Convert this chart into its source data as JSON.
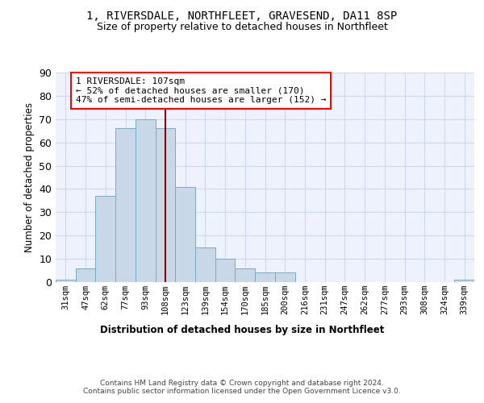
{
  "title": "1, RIVERSDALE, NORTHFLEET, GRAVESEND, DA11 8SP",
  "subtitle": "Size of property relative to detached houses in Northfleet",
  "xlabel": "Distribution of detached houses by size in Northfleet",
  "ylabel": "Number of detached properties",
  "bar_labels": [
    "31sqm",
    "47sqm",
    "62sqm",
    "77sqm",
    "93sqm",
    "108sqm",
    "123sqm",
    "139sqm",
    "154sqm",
    "170sqm",
    "185sqm",
    "200sqm",
    "216sqm",
    "231sqm",
    "247sqm",
    "262sqm",
    "277sqm",
    "293sqm",
    "308sqm",
    "324sqm",
    "339sqm"
  ],
  "bar_values": [
    1,
    6,
    37,
    66,
    70,
    66,
    41,
    15,
    10,
    6,
    4,
    4,
    0,
    0,
    0,
    0,
    0,
    0,
    0,
    0,
    1
  ],
  "bar_color": "#c8d8e8",
  "bar_edge_color": "#7aaac8",
  "grid_color": "#d0d8ee",
  "background_color": "#eef2fc",
  "vline_x": 5,
  "vline_color": "#8b0000",
  "annotation_text": "1 RIVERSDALE: 107sqm\n← 52% of detached houses are smaller (170)\n47% of semi-detached houses are larger (152) →",
  "annotation_box_color": "white",
  "annotation_box_edge_color": "red",
  "ylim": [
    0,
    90
  ],
  "yticks": [
    0,
    10,
    20,
    30,
    40,
    50,
    60,
    70,
    80,
    90
  ],
  "footer": "Contains HM Land Registry data © Crown copyright and database right 2024.\nContains public sector information licensed under the Open Government Licence v3.0."
}
